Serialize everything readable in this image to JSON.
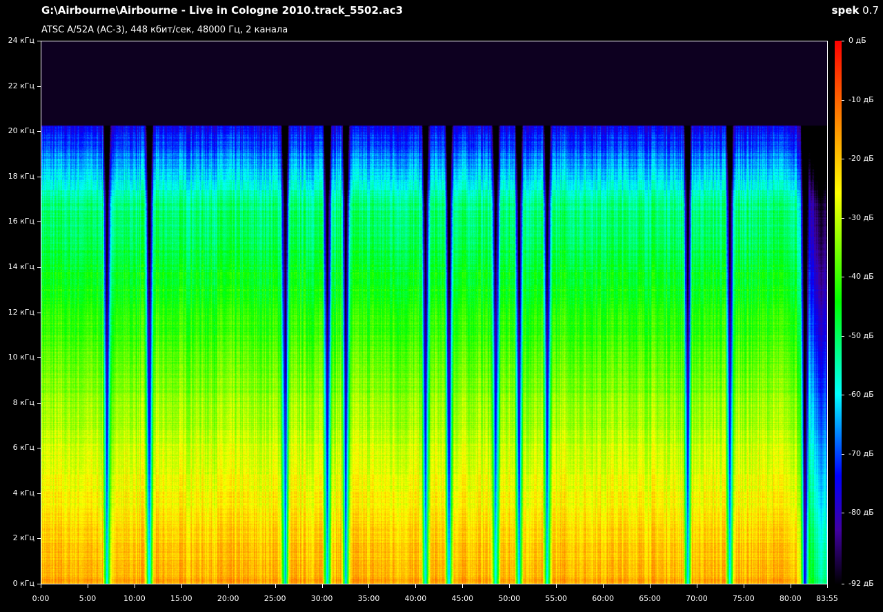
{
  "header": {
    "title": "G:\\Airbourne\\Airbourne - Live in Cologne 2010.track_5502.ac3",
    "subtitle": "ATSC A/52A (AC-3), 448 кбит/сек, 48000 Гц, 2 канала",
    "app_name": "spek",
    "app_version": "0.7"
  },
  "freq_axis": {
    "labels": [
      "0 кГц",
      "2 кГц",
      "4 кГц",
      "6 кГц",
      "8 кГц",
      "10 кГц",
      "12 кГц",
      "14 кГц",
      "16 кГц",
      "18 кГц",
      "20 кГц",
      "22 кГц",
      "24 кГц"
    ],
    "max_khz": 24
  },
  "time_axis": {
    "labels": [
      "0:00",
      "5:00",
      "10:00",
      "15:00",
      "20:00",
      "25:00",
      "30:00",
      "35:00",
      "40:00",
      "45:00",
      "50:00",
      "55:00",
      "60:00",
      "65:00",
      "70:00",
      "75:00",
      "80:00",
      "83:55"
    ],
    "duration_seconds": 5035
  },
  "colorbar": {
    "labels": [
      "0 дБ",
      "-10 дБ",
      "-20 дБ",
      "-30 дБ",
      "-40 дБ",
      "-50 дБ",
      "-60 дБ",
      "-70 дБ",
      "-80 дБ",
      "-92 дБ"
    ],
    "min_db": -92,
    "max_db": 0
  },
  "spectrum": {
    "cutoff_khz": 20.3,
    "quiet_gaps_minutes": [
      7,
      11.5,
      26,
      30.5,
      32.5,
      41,
      43.5,
      48.5,
      51,
      54,
      69,
      73.5,
      81.5
    ]
  },
  "colors": {
    "background": "#000000",
    "text": "#ffffff"
  }
}
